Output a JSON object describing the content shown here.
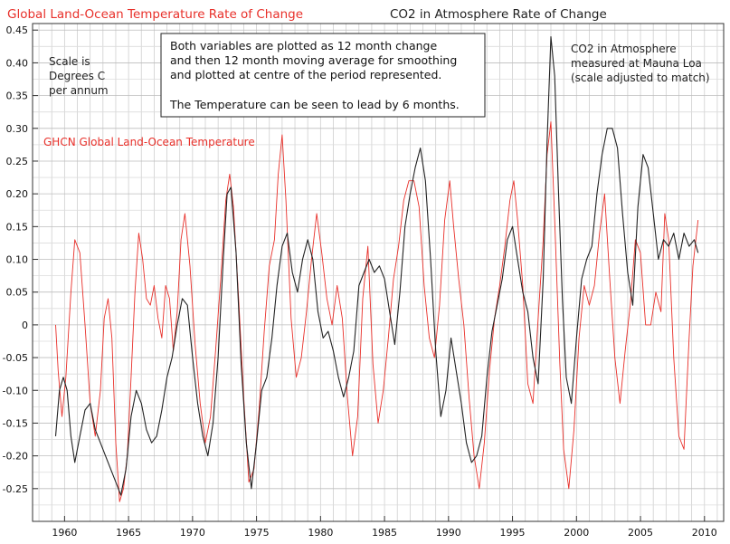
{
  "chart_data": {
    "type": "line",
    "title_left": "Global Land-Ocean Temperature Rate of Change",
    "title_right": "CO2 in Atmosphere Rate of Change",
    "xlabel": "",
    "ylabel": "",
    "xlim": [
      1957.5,
      2011.5
    ],
    "ylim": [
      -0.3,
      0.46
    ],
    "x_ticks": [
      "1960",
      "1965",
      "1970",
      "1975",
      "1980",
      "1985",
      "1990",
      "1995",
      "2000",
      "2005",
      "2010"
    ],
    "y_ticks": [
      "0.45",
      "0.40",
      "0.35",
      "0.30",
      "0.25",
      "0.20",
      "0.15",
      "0.10",
      "0.05",
      "0",
      "-0.05",
      "-0.10",
      "-0.15",
      "-0.20",
      "-0.25"
    ],
    "grid": true,
    "annotations": {
      "scale_note": [
        "Scale is",
        "Degrees C",
        "per annum"
      ],
      "box_lines": [
        "Both variables are plotted as 12 month change",
        "and then 12 month moving average for smoothing",
        "and plotted at centre of the period represented.",
        "",
        "The Temperature can be seen to lead by 6 months."
      ],
      "co2_note": [
        "CO2 in Atmosphere",
        "measured at Mauna Loa",
        "(scale adjusted to match)"
      ],
      "temp_series_label": "GHCN Global Land-Ocean Temperature"
    },
    "series": [
      {
        "name": "Global Land-Ocean Temperature Rate of Change",
        "color": "#e8302a",
        "points": [
          [
            1959.3,
            0.0
          ],
          [
            1959.5,
            -0.07
          ],
          [
            1959.8,
            -0.14
          ],
          [
            1960.1,
            -0.08
          ],
          [
            1960.5,
            0.05
          ],
          [
            1960.8,
            0.13
          ],
          [
            1961.2,
            0.11
          ],
          [
            1961.6,
            0.0
          ],
          [
            1962.0,
            -0.12
          ],
          [
            1962.4,
            -0.17
          ],
          [
            1962.8,
            -0.1
          ],
          [
            1963.1,
            0.01
          ],
          [
            1963.4,
            0.04
          ],
          [
            1963.7,
            -0.02
          ],
          [
            1964.0,
            -0.18
          ],
          [
            1964.3,
            -0.27
          ],
          [
            1964.6,
            -0.25
          ],
          [
            1964.9,
            -0.2
          ],
          [
            1965.2,
            -0.08
          ],
          [
            1965.5,
            0.05
          ],
          [
            1965.8,
            0.14
          ],
          [
            1966.1,
            0.1
          ],
          [
            1966.4,
            0.04
          ],
          [
            1966.7,
            0.03
          ],
          [
            1967.0,
            0.06
          ],
          [
            1967.3,
            0.01
          ],
          [
            1967.6,
            -0.02
          ],
          [
            1967.9,
            0.06
          ],
          [
            1968.2,
            0.04
          ],
          [
            1968.5,
            -0.04
          ],
          [
            1968.8,
            0.02
          ],
          [
            1969.1,
            0.13
          ],
          [
            1969.4,
            0.17
          ],
          [
            1969.8,
            0.09
          ],
          [
            1970.2,
            -0.03
          ],
          [
            1970.6,
            -0.12
          ],
          [
            1971.0,
            -0.18
          ],
          [
            1971.4,
            -0.14
          ],
          [
            1971.8,
            -0.04
          ],
          [
            1972.2,
            0.07
          ],
          [
            1972.6,
            0.19
          ],
          [
            1972.9,
            0.23
          ],
          [
            1973.2,
            0.18
          ],
          [
            1973.6,
            0.04
          ],
          [
            1974.0,
            -0.11
          ],
          [
            1974.4,
            -0.24
          ],
          [
            1974.8,
            -0.22
          ],
          [
            1975.2,
            -0.13
          ],
          [
            1975.6,
            -0.01
          ],
          [
            1976.0,
            0.09
          ],
          [
            1976.4,
            0.13
          ],
          [
            1976.7,
            0.23
          ],
          [
            1977.0,
            0.29
          ],
          [
            1977.3,
            0.19
          ],
          [
            1977.7,
            0.01
          ],
          [
            1978.1,
            -0.08
          ],
          [
            1978.5,
            -0.05
          ],
          [
            1978.9,
            0.02
          ],
          [
            1979.3,
            0.1
          ],
          [
            1979.7,
            0.17
          ],
          [
            1980.1,
            0.11
          ],
          [
            1980.5,
            0.04
          ],
          [
            1980.9,
            0.0
          ],
          [
            1981.3,
            0.06
          ],
          [
            1981.7,
            0.01
          ],
          [
            1982.1,
            -0.11
          ],
          [
            1982.5,
            -0.2
          ],
          [
            1982.9,
            -0.14
          ],
          [
            1983.3,
            0.04
          ],
          [
            1983.7,
            0.12
          ],
          [
            1984.1,
            -0.06
          ],
          [
            1984.5,
            -0.15
          ],
          [
            1984.9,
            -0.1
          ],
          [
            1985.3,
            -0.02
          ],
          [
            1985.7,
            0.07
          ],
          [
            1986.1,
            0.12
          ],
          [
            1986.5,
            0.19
          ],
          [
            1986.9,
            0.22
          ],
          [
            1987.3,
            0.22
          ],
          [
            1987.7,
            0.18
          ],
          [
            1988.1,
            0.06
          ],
          [
            1988.5,
            -0.02
          ],
          [
            1988.9,
            -0.05
          ],
          [
            1989.3,
            0.03
          ],
          [
            1989.7,
            0.16
          ],
          [
            1990.1,
            0.22
          ],
          [
            1990.4,
            0.15
          ],
          [
            1990.8,
            0.07
          ],
          [
            1991.2,
            0.0
          ],
          [
            1991.6,
            -0.11
          ],
          [
            1992.0,
            -0.2
          ],
          [
            1992.4,
            -0.25
          ],
          [
            1992.8,
            -0.18
          ],
          [
            1993.2,
            -0.07
          ],
          [
            1993.6,
            0.01
          ],
          [
            1994.0,
            0.06
          ],
          [
            1994.4,
            0.12
          ],
          [
            1994.8,
            0.19
          ],
          [
            1995.1,
            0.22
          ],
          [
            1995.4,
            0.16
          ],
          [
            1995.8,
            0.06
          ],
          [
            1996.2,
            -0.09
          ],
          [
            1996.6,
            -0.12
          ],
          [
            1997.0,
            0.01
          ],
          [
            1997.4,
            0.13
          ],
          [
            1997.7,
            0.26
          ],
          [
            1998.0,
            0.31
          ],
          [
            1998.3,
            0.16
          ],
          [
            1998.7,
            -0.06
          ],
          [
            1999.0,
            -0.19
          ],
          [
            1999.4,
            -0.25
          ],
          [
            1999.8,
            -0.16
          ],
          [
            2000.2,
            -0.02
          ],
          [
            2000.6,
            0.06
          ],
          [
            2001.0,
            0.03
          ],
          [
            2001.4,
            0.06
          ],
          [
            2001.8,
            0.14
          ],
          [
            2002.2,
            0.2
          ],
          [
            2002.6,
            0.07
          ],
          [
            2003.0,
            -0.05
          ],
          [
            2003.4,
            -0.12
          ],
          [
            2003.8,
            -0.04
          ],
          [
            2004.2,
            0.03
          ],
          [
            2004.6,
            0.13
          ],
          [
            2005.0,
            0.11
          ],
          [
            2005.4,
            0.0
          ],
          [
            2005.8,
            0.0
          ],
          [
            2006.2,
            0.05
          ],
          [
            2006.6,
            0.02
          ],
          [
            2006.9,
            0.17
          ],
          [
            2007.2,
            0.13
          ],
          [
            2007.6,
            -0.05
          ],
          [
            2008.0,
            -0.17
          ],
          [
            2008.4,
            -0.19
          ],
          [
            2008.8,
            -0.02
          ],
          [
            2009.1,
            0.09
          ],
          [
            2009.5,
            0.16
          ]
        ]
      },
      {
        "name": "CO2 in Atmosphere Rate of Change",
        "color": "#222222",
        "points": [
          [
            1959.3,
            -0.17
          ],
          [
            1959.6,
            -0.1
          ],
          [
            1959.9,
            -0.08
          ],
          [
            1960.2,
            -0.1
          ],
          [
            1960.5,
            -0.17
          ],
          [
            1960.8,
            -0.21
          ],
          [
            1961.2,
            -0.17
          ],
          [
            1961.6,
            -0.13
          ],
          [
            1962.0,
            -0.12
          ],
          [
            1962.4,
            -0.16
          ],
          [
            1962.8,
            -0.18
          ],
          [
            1963.2,
            -0.2
          ],
          [
            1963.6,
            -0.22
          ],
          [
            1964.0,
            -0.24
          ],
          [
            1964.4,
            -0.26
          ],
          [
            1964.8,
            -0.22
          ],
          [
            1965.2,
            -0.14
          ],
          [
            1965.6,
            -0.1
          ],
          [
            1966.0,
            -0.12
          ],
          [
            1966.4,
            -0.16
          ],
          [
            1966.8,
            -0.18
          ],
          [
            1967.2,
            -0.17
          ],
          [
            1967.6,
            -0.13
          ],
          [
            1968.0,
            -0.08
          ],
          [
            1968.4,
            -0.05
          ],
          [
            1968.8,
            0.0
          ],
          [
            1969.2,
            0.04
          ],
          [
            1969.6,
            0.03
          ],
          [
            1970.0,
            -0.05
          ],
          [
            1970.4,
            -0.12
          ],
          [
            1970.8,
            -0.17
          ],
          [
            1971.2,
            -0.2
          ],
          [
            1971.6,
            -0.15
          ],
          [
            1972.0,
            -0.05
          ],
          [
            1972.4,
            0.1
          ],
          [
            1972.7,
            0.2
          ],
          [
            1973.0,
            0.21
          ],
          [
            1973.4,
            0.11
          ],
          [
            1973.8,
            -0.06
          ],
          [
            1974.2,
            -0.18
          ],
          [
            1974.6,
            -0.25
          ],
          [
            1975.0,
            -0.18
          ],
          [
            1975.4,
            -0.1
          ],
          [
            1975.8,
            -0.08
          ],
          [
            1976.2,
            -0.02
          ],
          [
            1976.6,
            0.06
          ],
          [
            1977.0,
            0.12
          ],
          [
            1977.4,
            0.14
          ],
          [
            1977.8,
            0.08
          ],
          [
            1978.2,
            0.05
          ],
          [
            1978.6,
            0.1
          ],
          [
            1979.0,
            0.13
          ],
          [
            1979.4,
            0.1
          ],
          [
            1979.8,
            0.02
          ],
          [
            1980.2,
            -0.02
          ],
          [
            1980.6,
            -0.01
          ],
          [
            1981.0,
            -0.04
          ],
          [
            1981.4,
            -0.08
          ],
          [
            1981.8,
            -0.11
          ],
          [
            1982.2,
            -0.08
          ],
          [
            1982.6,
            -0.04
          ],
          [
            1983.0,
            0.06
          ],
          [
            1983.4,
            0.08
          ],
          [
            1983.8,
            0.1
          ],
          [
            1984.2,
            0.08
          ],
          [
            1984.6,
            0.09
          ],
          [
            1985.0,
            0.07
          ],
          [
            1985.4,
            0.02
          ],
          [
            1985.8,
            -0.03
          ],
          [
            1986.2,
            0.05
          ],
          [
            1986.6,
            0.15
          ],
          [
            1987.0,
            0.2
          ],
          [
            1987.4,
            0.24
          ],
          [
            1987.8,
            0.27
          ],
          [
            1988.2,
            0.22
          ],
          [
            1988.6,
            0.1
          ],
          [
            1989.0,
            -0.04
          ],
          [
            1989.4,
            -0.14
          ],
          [
            1989.8,
            -0.1
          ],
          [
            1990.2,
            -0.02
          ],
          [
            1990.6,
            -0.07
          ],
          [
            1991.0,
            -0.12
          ],
          [
            1991.4,
            -0.18
          ],
          [
            1991.8,
            -0.21
          ],
          [
            1992.2,
            -0.2
          ],
          [
            1992.6,
            -0.17
          ],
          [
            1993.0,
            -0.08
          ],
          [
            1993.4,
            -0.01
          ],
          [
            1993.8,
            0.03
          ],
          [
            1994.2,
            0.07
          ],
          [
            1994.6,
            0.13
          ],
          [
            1995.0,
            0.15
          ],
          [
            1995.4,
            0.1
          ],
          [
            1995.8,
            0.05
          ],
          [
            1996.2,
            0.02
          ],
          [
            1996.6,
            -0.05
          ],
          [
            1997.0,
            -0.09
          ],
          [
            1997.4,
            0.07
          ],
          [
            1997.7,
            0.28
          ],
          [
            1998.0,
            0.44
          ],
          [
            1998.3,
            0.38
          ],
          [
            1998.6,
            0.2
          ],
          [
            1998.9,
            0.04
          ],
          [
            1999.2,
            -0.08
          ],
          [
            1999.6,
            -0.12
          ],
          [
            2000.0,
            -0.02
          ],
          [
            2000.4,
            0.07
          ],
          [
            2000.8,
            0.1
          ],
          [
            2001.2,
            0.12
          ],
          [
            2001.6,
            0.2
          ],
          [
            2002.0,
            0.26
          ],
          [
            2002.4,
            0.3
          ],
          [
            2002.8,
            0.3
          ],
          [
            2003.2,
            0.27
          ],
          [
            2003.6,
            0.17
          ],
          [
            2004.0,
            0.08
          ],
          [
            2004.4,
            0.03
          ],
          [
            2004.8,
            0.18
          ],
          [
            2005.2,
            0.26
          ],
          [
            2005.6,
            0.24
          ],
          [
            2006.0,
            0.17
          ],
          [
            2006.4,
            0.1
          ],
          [
            2006.8,
            0.13
          ],
          [
            2007.2,
            0.12
          ],
          [
            2007.6,
            0.14
          ],
          [
            2008.0,
            0.1
          ],
          [
            2008.4,
            0.14
          ],
          [
            2008.8,
            0.12
          ],
          [
            2009.2,
            0.13
          ],
          [
            2009.5,
            0.11
          ]
        ]
      }
    ]
  }
}
